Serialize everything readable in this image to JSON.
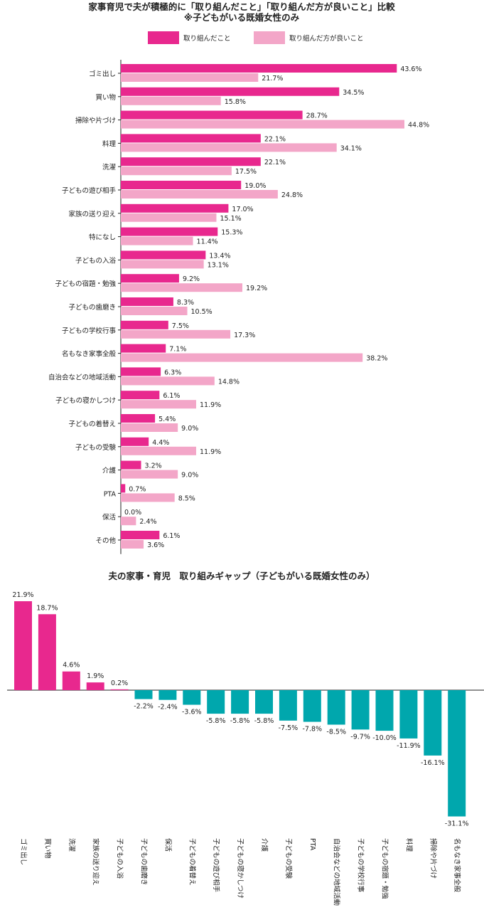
{
  "colors": {
    "done": "#e8288e",
    "better": "#f3a6c8",
    "pos": "#e8288e",
    "neg": "#00a7ad",
    "axis": "#222222"
  },
  "chart_data": [
    {
      "type": "bar",
      "orientation": "horizontal",
      "title": "家事育児で夫が積極的に「取り組んだこと」「取り組んだ方が良いこと」比較",
      "subtitle": "※子どもがいる既婚女性のみ",
      "legend": "top",
      "unit": "%",
      "categories": [
        "ゴミ出し",
        "買い物",
        "掃除や片づけ",
        "料理",
        "洗濯",
        "子どもの遊び相手",
        "家族の送り迎え",
        "特になし",
        "子どもの入浴",
        "子どもの宿題・勉強",
        "子どもの歯磨き",
        "子どもの学校行事",
        "名もなき家事全般",
        "自治会などの地域活動",
        "子どもの寝かしつけ",
        "子どもの着替え",
        "子どもの受験",
        "介護",
        "PTA",
        "保活",
        "その他"
      ],
      "series": [
        {
          "name": "取り組んだこと",
          "values": [
            43.6,
            34.5,
            28.7,
            22.1,
            22.1,
            19.0,
            17.0,
            15.3,
            13.4,
            9.2,
            8.3,
            7.5,
            7.1,
            6.3,
            6.1,
            5.4,
            4.4,
            3.2,
            0.7,
            0.0,
            6.1
          ]
        },
        {
          "name": "取り組んだ方が良いこと",
          "values": [
            21.7,
            15.8,
            44.8,
            34.1,
            17.5,
            24.8,
            15.1,
            11.4,
            13.1,
            19.2,
            10.5,
            17.3,
            38.2,
            14.8,
            11.9,
            9.0,
            11.9,
            9.0,
            8.5,
            2.4,
            3.6
          ]
        }
      ],
      "labels": [
        [
          "43.6%",
          "34.5%",
          "28.7%",
          "22.1%",
          "22.1%",
          "19.0%",
          "17.0%",
          "15.3%",
          "13.4%",
          "9.2%",
          "8.3%",
          "7.5%",
          "7.1%",
          "6.3%",
          "6.1%",
          "5.4%",
          "4.4%",
          "3.2%",
          "0.7%",
          "0.0%",
          "6.1%"
        ],
        [
          "21.7%",
          "15.8%",
          "44.8%",
          "34.1%",
          "17.5%",
          "24.8%",
          "15.1%",
          "11.4%",
          "13.1%",
          "19.2%",
          "10.5%",
          "17.3%",
          "38.2%",
          "14.8%",
          "11.9%",
          "9.0%",
          "11.9%",
          "9.0%",
          "8.5%",
          "2.4%",
          "3.6%"
        ]
      ],
      "xlim": [
        0,
        50
      ]
    },
    {
      "type": "bar",
      "orientation": "vertical",
      "title": "夫の家事・育児　取り組みギャップ（子どもがいる既婚女性のみ）",
      "unit": "%",
      "categories": [
        "ゴミ出し",
        "買い物",
        "洗濯",
        "家族の送り迎え",
        "子どもの入浴",
        "子どもの歯磨き",
        "保活",
        "子どもの着替え",
        "子どもの遊び相手",
        "子どもの寝かしつけ",
        "介護",
        "子どもの受験",
        "PTA",
        "自治会などの地域活動",
        "子どもの学校行事",
        "子どもの宿題・勉強",
        "料理",
        "掃除や片づけ",
        "名もなき家事全般"
      ],
      "values": [
        21.9,
        18.7,
        4.6,
        1.9,
        0.2,
        -2.2,
        -2.4,
        -3.6,
        -5.8,
        -5.8,
        -5.8,
        -7.5,
        -7.8,
        -8.5,
        -9.7,
        -10.0,
        -11.9,
        -16.1,
        -31.1
      ],
      "labels": [
        "21.9%",
        "18.7%",
        "4.6%",
        "1.9%",
        "0.2%",
        "-2.2%",
        "-2.4%",
        "-3.6%",
        "-5.8%",
        "-5.8%",
        "-5.8%",
        "-7.5%",
        "-7.8%",
        "-8.5%",
        "-9.7%",
        "-10.0%",
        "-11.9%",
        "-16.1%",
        "-31.1%"
      ],
      "ylim": [
        -31.1,
        21.9
      ]
    }
  ]
}
